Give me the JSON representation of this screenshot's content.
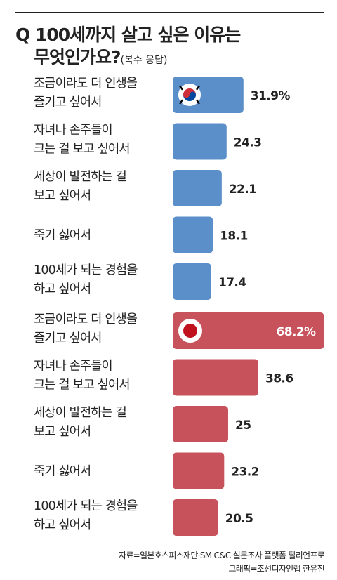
{
  "title": {
    "line1": "Q 100세까지 살고 싶은 이유는",
    "line2": "무엇인가요?",
    "subtitle": "(복수 응답)"
  },
  "colors": {
    "korea_bar": "#5b8fca",
    "japan_bar": "#c8525c",
    "text": "#222222"
  },
  "chart_data": [
    {
      "type": "bar",
      "orientation": "horizontal",
      "flag": "korea-flag",
      "series_color": "#5b8fca",
      "categories": [
        [
          "조금이라도 더 인생을",
          "즐기고 싶어서"
        ],
        [
          "자녀나 손주들이",
          "크는 걸 보고 싶어서"
        ],
        [
          "세상이 발전하는 걸",
          "보고 싶어서"
        ],
        [
          "죽기 싫어서"
        ],
        [
          "100세가 되는 경험을",
          "하고 싶어서"
        ]
      ],
      "values": [
        31.9,
        24.3,
        22.1,
        18.1,
        17.4
      ],
      "value_labels": [
        "31.9%",
        "24.3",
        "22.1",
        "18.1",
        "17.4"
      ]
    },
    {
      "type": "bar",
      "orientation": "horizontal",
      "flag": "japan-flag",
      "series_color": "#c8525c",
      "categories": [
        [
          "조금이라도 더 인생을",
          "즐기고 싶어서"
        ],
        [
          "자녀나 손주들이",
          "크는 걸 보고 싶어서"
        ],
        [
          "세상이 발전하는 걸",
          "보고 싶어서"
        ],
        [
          "죽기 싫어서"
        ],
        [
          "100세가 되는 경험을",
          "하고 싶어서"
        ]
      ],
      "values": [
        68.2,
        38.6,
        25,
        23.2,
        20.5
      ],
      "value_labels": [
        "68.2%",
        "38.6",
        "25",
        "23.2",
        "20.5"
      ]
    }
  ],
  "source": {
    "line1": "자료=일본호스피스재단·SM C&C 설문조사 플랫폼 틸리언프로",
    "line2": "그래픽=조선디자인랩 한유진"
  }
}
